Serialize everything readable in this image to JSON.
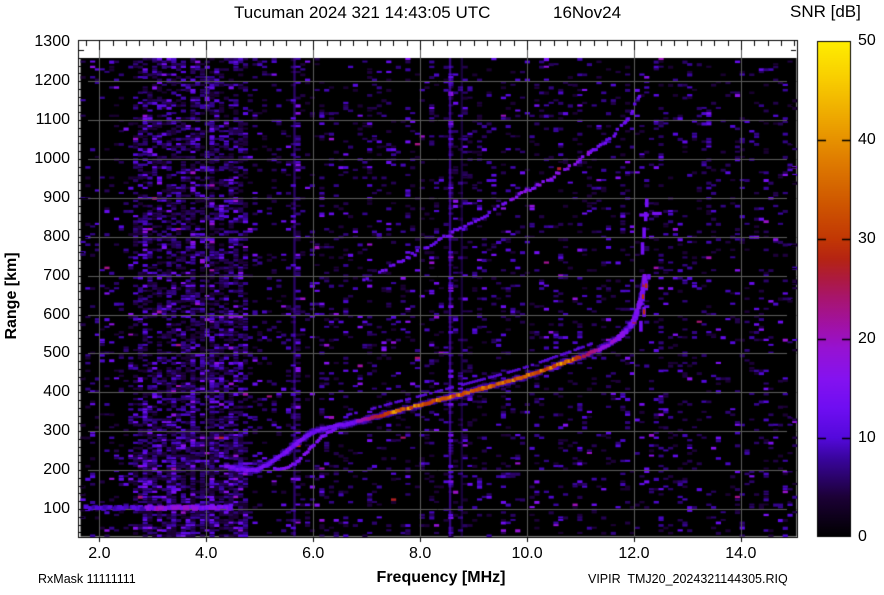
{
  "header": {
    "title": "Tucuman 2024 321 14:43:05 UTC",
    "date": "16Nov24"
  },
  "footer": {
    "left": "RxMask 11111111",
    "right": "VIPIR  TMJ20_2024321144305.RIQ"
  },
  "chart_data": {
    "type": "heatmap",
    "title": "Tucuman 2024 321 14:43:05 UTC 16Nov24 ionogram",
    "x": {
      "label": "Frequency [MHz]",
      "min": 1.6,
      "max": 15.05,
      "major_ticks": [
        2,
        4,
        6,
        8,
        10,
        12,
        14
      ],
      "major_tick_labels": [
        "2.0",
        "4.0",
        "6.0",
        "8.0",
        "10.0",
        "12.0",
        "14.0"
      ],
      "minor_step": 0.25
    },
    "y": {
      "label": "Range [km]",
      "min": 28,
      "max": 1295,
      "data_top": 1255,
      "major_ticks": [
        100,
        200,
        300,
        400,
        500,
        600,
        700,
        800,
        900,
        1000,
        1100,
        1200,
        1300
      ],
      "minor_step": 20
    },
    "snr": {
      "label": "SNR [dB]",
      "min": 0,
      "max": 50,
      "ticks": [
        0,
        10,
        20,
        30,
        40,
        50
      ]
    },
    "background_color": "#000000",
    "gridline_color": "#5c5c5c",
    "palette": [
      [
        0,
        "#000000"
      ],
      [
        4,
        "#1c0136"
      ],
      [
        8,
        "#3a05a0"
      ],
      [
        10,
        "#5409dc"
      ],
      [
        13,
        "#6f0ef2"
      ],
      [
        16,
        "#8512f0"
      ],
      [
        19,
        "#9712d2"
      ],
      [
        21,
        "#a011ac"
      ],
      [
        24,
        "#a81570"
      ],
      [
        26,
        "#ad1a40"
      ],
      [
        28,
        "#b52413"
      ],
      [
        30,
        "#c23705"
      ],
      [
        34,
        "#d05a00"
      ],
      [
        38,
        "#e07d00"
      ],
      [
        42,
        "#eda500"
      ],
      [
        46,
        "#f8cc00"
      ],
      [
        50,
        "#ffee00"
      ]
    ],
    "noise": {
      "seed": 42,
      "base_density": 0.1,
      "dense_band": {
        "f_min": 2.55,
        "f_max": 4.78,
        "density": 0.3
      },
      "stripes": [
        {
          "f": 2.58,
          "s": 0.1
        },
        {
          "f": 2.8,
          "s": 0.14
        },
        {
          "f": 3.02,
          "s": 0.16
        },
        {
          "f": 3.3,
          "s": 0.26
        },
        {
          "f": 3.52,
          "s": 0.2
        },
        {
          "f": 3.7,
          "s": 0.3
        },
        {
          "f": 3.9,
          "s": 0.24
        },
        {
          "f": 4.08,
          "s": 0.34
        },
        {
          "f": 4.28,
          "s": 0.3
        },
        {
          "f": 4.5,
          "s": 0.22
        },
        {
          "f": 4.66,
          "s": 0.24
        },
        {
          "f": 4.9,
          "s": 0.14
        },
        {
          "f": 5.2,
          "s": 0.1
        },
        {
          "f": 5.65,
          "s": 0.48
        },
        {
          "f": 6.12,
          "s": 0.15
        },
        {
          "f": 6.35,
          "s": 0.1
        },
        {
          "f": 6.6,
          "s": 0.12
        },
        {
          "f": 7.02,
          "s": 0.12
        },
        {
          "f": 7.4,
          "s": 0.1
        },
        {
          "f": 7.72,
          "s": 0.08
        },
        {
          "f": 8.2,
          "s": 0.12
        },
        {
          "f": 8.56,
          "s": 0.5
        },
        {
          "f": 8.78,
          "s": 0.2
        },
        {
          "f": 9.14,
          "s": 0.12
        },
        {
          "f": 9.56,
          "s": 0.14
        },
        {
          "f": 10.15,
          "s": 0.08
        },
        {
          "f": 10.6,
          "s": 0.08
        },
        {
          "f": 10.95,
          "s": 0.1
        },
        {
          "f": 11.45,
          "s": 0.13
        },
        {
          "f": 11.8,
          "s": 0.08
        },
        {
          "f": 12.52,
          "s": 0.1
        },
        {
          "f": 12.95,
          "s": 0.06
        },
        {
          "f": 13.4,
          "s": 0.1
        },
        {
          "f": 13.95,
          "s": 0.06
        },
        {
          "f": 14.45,
          "s": 0.08
        },
        {
          "f": 14.85,
          "s": 0.06
        }
      ],
      "solid_lines": [
        {
          "f": 5.65,
          "alpha": 0.45
        },
        {
          "f": 8.56,
          "alpha": 0.55
        },
        {
          "f": 8.78,
          "alpha": 0.25
        }
      ]
    },
    "traces": {
      "e_layer": {
        "range_km": 103,
        "f_start": 1.72,
        "f_end": 4.45,
        "bright_from": 2.85
      },
      "f_trace": [
        [
          4.38,
          210
        ],
        [
          4.55,
          203
        ],
        [
          4.75,
          200
        ],
        [
          4.95,
          202
        ],
        [
          5.1,
          210
        ],
        [
          5.3,
          228
        ],
        [
          5.5,
          248
        ],
        [
          5.7,
          270
        ],
        [
          5.9,
          290
        ],
        [
          6.1,
          303
        ],
        [
          6.3,
          310
        ],
        [
          6.6,
          318
        ],
        [
          6.9,
          327
        ],
        [
          7.2,
          338
        ],
        [
          7.5,
          350
        ],
        [
          7.8,
          360
        ],
        [
          8.1,
          371
        ],
        [
          8.4,
          382
        ],
        [
          8.7,
          393
        ],
        [
          9.0,
          404
        ],
        [
          9.3,
          415
        ],
        [
          9.6,
          426
        ],
        [
          9.9,
          438
        ],
        [
          10.2,
          452
        ],
        [
          10.5,
          467
        ],
        [
          10.8,
          481
        ],
        [
          11.1,
          496
        ],
        [
          11.4,
          514
        ],
        [
          11.65,
          533
        ],
        [
          11.85,
          556
        ],
        [
          12.0,
          583
        ],
        [
          12.08,
          612
        ],
        [
          12.14,
          645
        ],
        [
          12.18,
          675
        ],
        [
          12.21,
          700
        ]
      ],
      "x_branch": [
        [
          5.28,
          202
        ],
        [
          5.5,
          207
        ],
        [
          5.7,
          220
        ],
        [
          5.9,
          248
        ],
        [
          6.1,
          278
        ],
        [
          6.3,
          298
        ],
        [
          6.45,
          309
        ]
      ],
      "second_hop": [
        [
          6.95,
          688
        ],
        [
          7.2,
          705
        ],
        [
          7.5,
          728
        ],
        [
          7.8,
          750
        ],
        [
          8.1,
          772
        ],
        [
          8.4,
          794
        ],
        [
          8.7,
          816
        ],
        [
          9.0,
          838
        ],
        [
          9.3,
          862
        ],
        [
          9.6,
          888
        ],
        [
          9.9,
          912
        ],
        [
          10.2,
          933
        ],
        [
          10.5,
          956
        ],
        [
          10.8,
          980
        ],
        [
          11.05,
          1002
        ],
        [
          11.3,
          1028
        ],
        [
          11.5,
          1048
        ],
        [
          11.7,
          1072
        ],
        [
          11.85,
          1095
        ],
        [
          11.95,
          1118
        ],
        [
          12.02,
          1140
        ],
        [
          12.08,
          1158
        ],
        [
          12.12,
          1172
        ]
      ],
      "asymptote_dashes": [
        {
          "f": 12.13,
          "r1": 556,
          "r2": 584,
          "hot": false
        },
        {
          "f": 12.19,
          "r1": 594,
          "r2": 620,
          "hot": true
        },
        {
          "f": 12.17,
          "r1": 634,
          "r2": 658,
          "hot": true
        },
        {
          "f": 12.23,
          "r1": 662,
          "r2": 686,
          "hot": true
        },
        {
          "f": 12.28,
          "r1": 690,
          "r2": 704,
          "hot": false
        },
        {
          "f": 12.16,
          "r1": 754,
          "r2": 786,
          "hot": false
        },
        {
          "f": 12.19,
          "r1": 796,
          "r2": 824,
          "hot": false
        },
        {
          "f": 12.22,
          "r1": 840,
          "r2": 864,
          "hot": false
        },
        {
          "f": 12.24,
          "r1": 876,
          "r2": 898,
          "hot": false
        }
      ],
      "horizontal_dashes": [
        {
          "f1": 12.1,
          "f2": 12.28,
          "r": 856
        },
        {
          "f1": 12.34,
          "f2": 12.52,
          "r": 860
        }
      ]
    }
  }
}
